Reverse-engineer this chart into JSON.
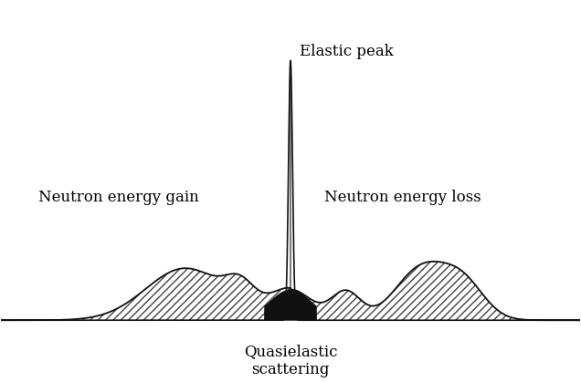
{
  "background_color": "#ffffff",
  "elastic_peak_label": "Elastic peak",
  "neutron_gain_label": "Neutron energy gain",
  "neutron_loss_label": "Neutron energy loss",
  "quasielastic_label": "Quasielastic\nscattering",
  "label_fontsize": 12,
  "hatch_pattern": "////",
  "hatch_color": "#444444",
  "fill_color": "#ffffff",
  "outline_color": "#111111",
  "dark_fill_color": "#111111",
  "xlim": [
    -5.5,
    5.5
  ],
  "ylim": [
    -0.18,
    1.35
  ]
}
